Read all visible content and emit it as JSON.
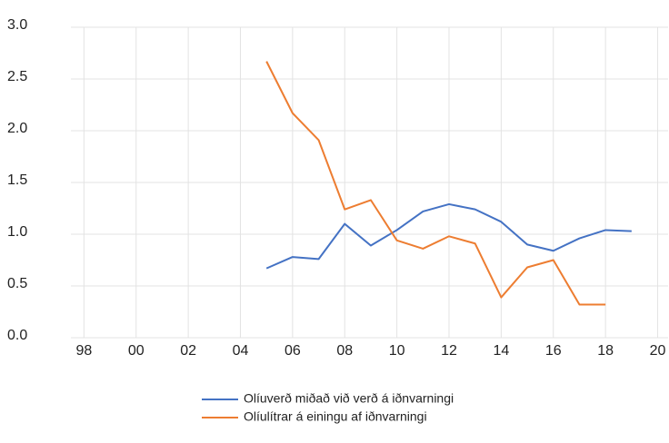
{
  "chart_data": {
    "type": "line",
    "x": [
      2005,
      2006,
      2007,
      2008,
      2009,
      2010,
      2011,
      2012,
      2013,
      2014,
      2015,
      2016,
      2017,
      2018,
      2019
    ],
    "series": [
      {
        "name": "Olíuverð miðað við verð á iðnvarningi",
        "color": "#4472c4",
        "values": [
          0.67,
          0.78,
          0.76,
          1.1,
          0.89,
          1.04,
          1.22,
          1.29,
          1.24,
          1.12,
          0.9,
          0.84,
          0.96,
          1.04,
          1.03
        ]
      },
      {
        "name": "Olíulítrar á einingu af iðnvarningi",
        "color": "#ed7d31",
        "values": [
          2.67,
          2.17,
          1.91,
          1.24,
          1.33,
          0.94,
          0.86,
          0.98,
          0.91,
          0.39,
          0.68,
          0.75,
          0.32,
          0.32,
          null
        ]
      }
    ],
    "xlim": [
      1997.5,
      2020.4
    ],
    "xticks": [
      {
        "value": 1998,
        "label": "98"
      },
      {
        "value": 2000,
        "label": "00"
      },
      {
        "value": 2002,
        "label": "02"
      },
      {
        "value": 2004,
        "label": "04"
      },
      {
        "value": 2006,
        "label": "06"
      },
      {
        "value": 2008,
        "label": "08"
      },
      {
        "value": 2010,
        "label": "10"
      },
      {
        "value": 2012,
        "label": "12"
      },
      {
        "value": 2014,
        "label": "14"
      },
      {
        "value": 2016,
        "label": "16"
      },
      {
        "value": 2018,
        "label": "18"
      },
      {
        "value": 2020,
        "label": "20"
      }
    ],
    "ylim": [
      0,
      3
    ],
    "yticks": [
      {
        "value": 0,
        "label": "0.0"
      },
      0.5,
      {
        "value": 1,
        "label": "1.0"
      },
      1.5,
      {
        "value": 2,
        "label": "2.0"
      },
      2.5,
      {
        "value": 3,
        "label": "3.0"
      }
    ],
    "grid": true
  }
}
